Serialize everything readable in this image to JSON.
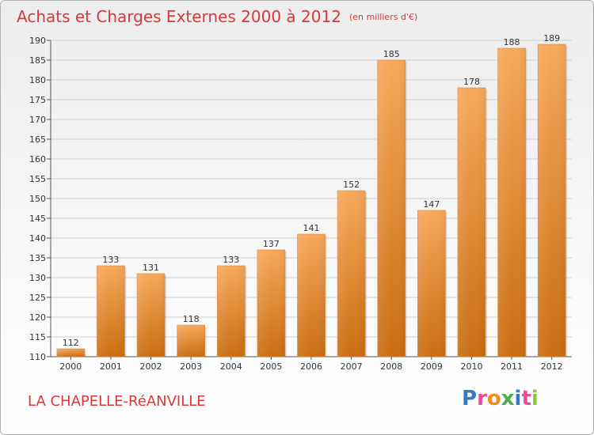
{
  "header": {
    "title": "Achats et Charges Externes 2000 à 2012",
    "subtitle": "(en milliers d'€)"
  },
  "footer": {
    "commune": "LA CHAPELLE-RéANVILLE",
    "logo": "Proxiti"
  },
  "colors": {
    "title": "#d9383a",
    "bar_top": "#f7a85a",
    "bar_bottom": "#c96d12",
    "logo_letters": [
      "#3a78c4",
      "#e94e9b",
      "#f08a1c",
      "#4cae4c",
      "#3a78c4",
      "#e94e9b",
      "#8dc63f"
    ]
  },
  "chart_data": {
    "type": "bar",
    "categories": [
      "2000",
      "2001",
      "2002",
      "2003",
      "2004",
      "2005",
      "2006",
      "2007",
      "2008",
      "2009",
      "2010",
      "2011",
      "2012"
    ],
    "values": [
      112,
      133,
      131,
      118,
      133,
      137,
      141,
      152,
      185,
      147,
      178,
      188,
      189
    ],
    "title": "Achats et Charges Externes 2000 à 2012",
    "ylim": [
      110,
      190
    ],
    "yticks": [
      110,
      115,
      120,
      125,
      130,
      135,
      140,
      145,
      150,
      155,
      160,
      165,
      170,
      175,
      180,
      185,
      190
    ],
    "grid": true,
    "data_labels": true
  }
}
